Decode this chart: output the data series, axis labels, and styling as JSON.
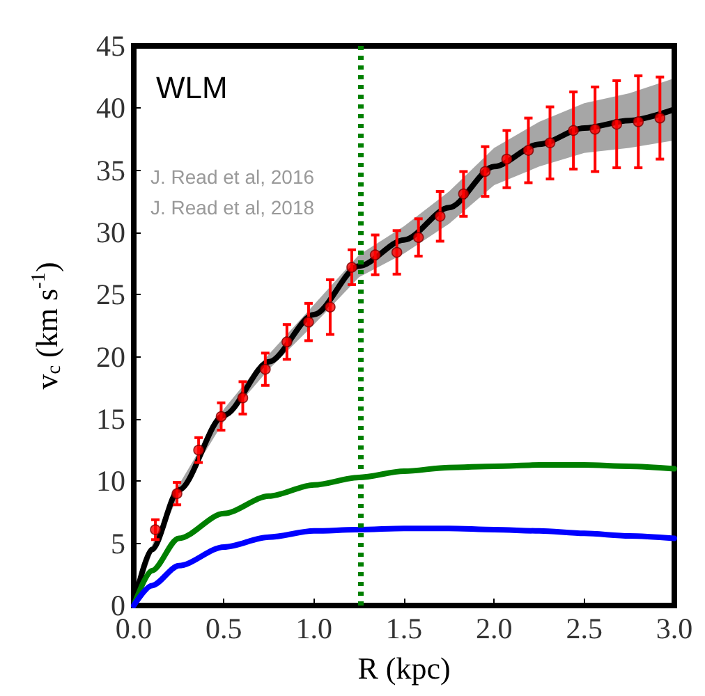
{
  "chart_data": {
    "type": "line",
    "xlabel": "R (kpc)",
    "ylabel": "v$_{c}$ (km s$^{-1}$)",
    "annotations": [
      "WLM",
      "J. Read et al, 2016",
      "J. Read et al, 2018"
    ],
    "xlim": [
      0,
      3
    ],
    "ylim": [
      0,
      45
    ],
    "xticks": [
      {
        "value": 0,
        "label": "0.0"
      },
      {
        "value": 0.5,
        "label": "0.5"
      },
      {
        "value": 1,
        "label": "1.0"
      },
      {
        "value": 1.5,
        "label": "1.5"
      },
      {
        "value": 2,
        "label": "2.0"
      },
      {
        "value": 2.5,
        "label": "2.5"
      },
      {
        "value": 3,
        "label": "3.0"
      }
    ],
    "yticks": [
      0,
      5,
      10,
      15,
      20,
      25,
      30,
      35,
      40,
      45
    ],
    "grid": false,
    "line_style": "solid",
    "ref_lines": [
      {
        "axis": "x",
        "value": 1.26,
        "color": "#007f00",
        "line_style": "dotted"
      }
    ],
    "series": [
      {
        "color": "#000000",
        "marker": "none",
        "x": [
          0,
          0.1,
          0.25,
          0.5,
          0.75,
          1.0,
          1.25,
          1.5,
          1.75,
          2.0,
          2.25,
          2.5,
          2.75,
          3.0
        ],
        "values": [
          0,
          4.5,
          9.3,
          15.3,
          19.6,
          23.4,
          27.3,
          29.4,
          32.0,
          35.3,
          37.1,
          38.4,
          39.0,
          39.9
        ],
        "lower": [
          0,
          4.2,
          8.9,
          14.8,
          19.0,
          22.6,
          26.4,
          28.3,
          30.7,
          33.8,
          35.3,
          36.4,
          36.8,
          37.4
        ],
        "upper": [
          0,
          4.8,
          9.7,
          15.8,
          20.2,
          24.2,
          28.2,
          30.5,
          33.3,
          36.8,
          38.9,
          40.4,
          41.2,
          42.4
        ]
      },
      {
        "color": "#007f00",
        "marker": "none",
        "x": [
          0,
          0.1,
          0.25,
          0.5,
          0.75,
          1.0,
          1.25,
          1.5,
          1.75,
          2.0,
          2.25,
          2.5,
          2.75,
          3.0
        ],
        "values": [
          0,
          2.8,
          5.4,
          7.4,
          8.8,
          9.7,
          10.3,
          10.8,
          11.1,
          11.2,
          11.3,
          11.3,
          11.2,
          11.0
        ]
      },
      {
        "color": "#0000ff",
        "marker": "none",
        "x": [
          0,
          0.1,
          0.25,
          0.5,
          0.75,
          1.0,
          1.25,
          1.5,
          1.75,
          2.0,
          2.25,
          2.5,
          2.75,
          3.0
        ],
        "values": [
          0,
          1.6,
          3.2,
          4.7,
          5.5,
          6.0,
          6.1,
          6.2,
          6.2,
          6.1,
          6.0,
          5.8,
          5.6,
          5.4
        ]
      },
      {
        "type": "scatter",
        "color": "#ff0000",
        "marker": "circle",
        "x": [
          0.12,
          0.24,
          0.36,
          0.485,
          0.605,
          0.73,
          0.85,
          0.97,
          1.09,
          1.21,
          1.34,
          1.46,
          1.58,
          1.7,
          1.83,
          1.95,
          2.07,
          2.19,
          2.31,
          2.44,
          2.56,
          2.68,
          2.8,
          2.92
        ],
        "values": [
          6.1,
          9.0,
          12.5,
          15.2,
          16.7,
          19.0,
          21.2,
          22.8,
          24.0,
          27.2,
          28.2,
          28.4,
          29.6,
          31.3,
          33.1,
          34.9,
          35.9,
          36.6,
          37.2,
          38.2,
          38.3,
          38.7,
          38.9,
          39.2
        ],
        "errors": [
          0.8,
          0.9,
          1.0,
          1.1,
          1.3,
          1.3,
          1.4,
          1.5,
          2.2,
          1.4,
          1.6,
          1.75,
          1.5,
          2.0,
          1.8,
          2.0,
          2.3,
          2.6,
          2.9,
          3.1,
          3.4,
          3.5,
          3.7,
          3.3
        ]
      }
    ]
  }
}
